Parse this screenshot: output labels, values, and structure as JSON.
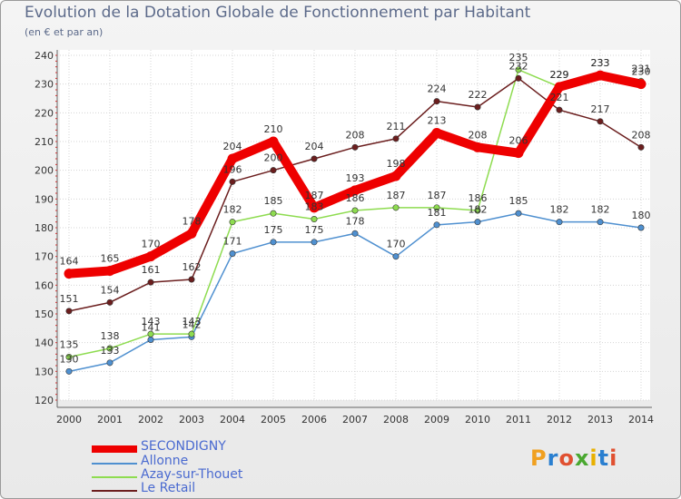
{
  "title": "Evolution de la Dotation Globale de Fonctionnement par Habitant",
  "subtitle": "(en € et par an)",
  "logo": {
    "text": "Proxiti",
    "colors": [
      "#f0a020",
      "#2a7fd0",
      "#e05030",
      "#4aa830",
      "#e8b000",
      "#2a7fd0",
      "#e05030"
    ]
  },
  "chart_data": {
    "type": "line",
    "title": "Evolution de la Dotation Globale de Fonctionnement par Habitant",
    "subtitle": "(en € et par an)",
    "x": [
      "2000",
      "2001",
      "2002",
      "2003",
      "2004",
      "2005",
      "2006",
      "2007",
      "2008",
      "2009",
      "2010",
      "2011",
      "2012",
      "2013",
      "2014"
    ],
    "yticks": [
      "120",
      "130",
      "140",
      "150",
      "160",
      "170",
      "180",
      "190",
      "200",
      "210",
      "220",
      "230",
      "240"
    ],
    "ylim": [
      120,
      240
    ],
    "grid": true,
    "legend_position": "bottom-left",
    "series": [
      {
        "name": "SECONDIGNY",
        "color": "#ee0000",
        "values": [
          164,
          165,
          170,
          178,
          204,
          210,
          187,
          193,
          198,
          213,
          208,
          206,
          229,
          233,
          230
        ],
        "labels": [
          "164",
          "165",
          "170",
          "178",
          "204",
          "210",
          "187",
          "193",
          "198",
          "213",
          "208",
          "206",
          "229",
          "233",
          "230"
        ]
      },
      {
        "name": "Allonne",
        "color": "#4f90d0",
        "values": [
          130,
          133,
          141,
          142,
          171,
          175,
          175,
          178,
          170,
          181,
          182,
          185,
          182,
          182,
          180
        ],
        "labels": [
          "130",
          "133",
          "141",
          "142",
          "171",
          "175",
          "175",
          "178",
          "170",
          "181",
          "182",
          "185",
          "182",
          "182",
          "180"
        ]
      },
      {
        "name": "Azay-sur-Thouet",
        "color": "#8edc50",
        "values": [
          135,
          138,
          143,
          143,
          182,
          185,
          183,
          186,
          187,
          187,
          186,
          235,
          229,
          233,
          231
        ],
        "labels": [
          "135",
          "138",
          "143",
          "143",
          "182",
          "185",
          "183",
          "186",
          "187",
          "187",
          "186",
          "235",
          "229",
          "233",
          "231"
        ]
      },
      {
        "name": "Le Retail",
        "color": "#6b1e1e",
        "values": [
          151,
          154,
          161,
          162,
          196,
          200,
          204,
          208,
          211,
          224,
          222,
          232,
          221,
          217,
          208
        ],
        "labels": [
          "151",
          "154",
          "161",
          "162",
          "196",
          "200",
          "204",
          "208",
          "211",
          "224",
          "222",
          "232",
          "221",
          "217",
          "208"
        ]
      }
    ]
  }
}
